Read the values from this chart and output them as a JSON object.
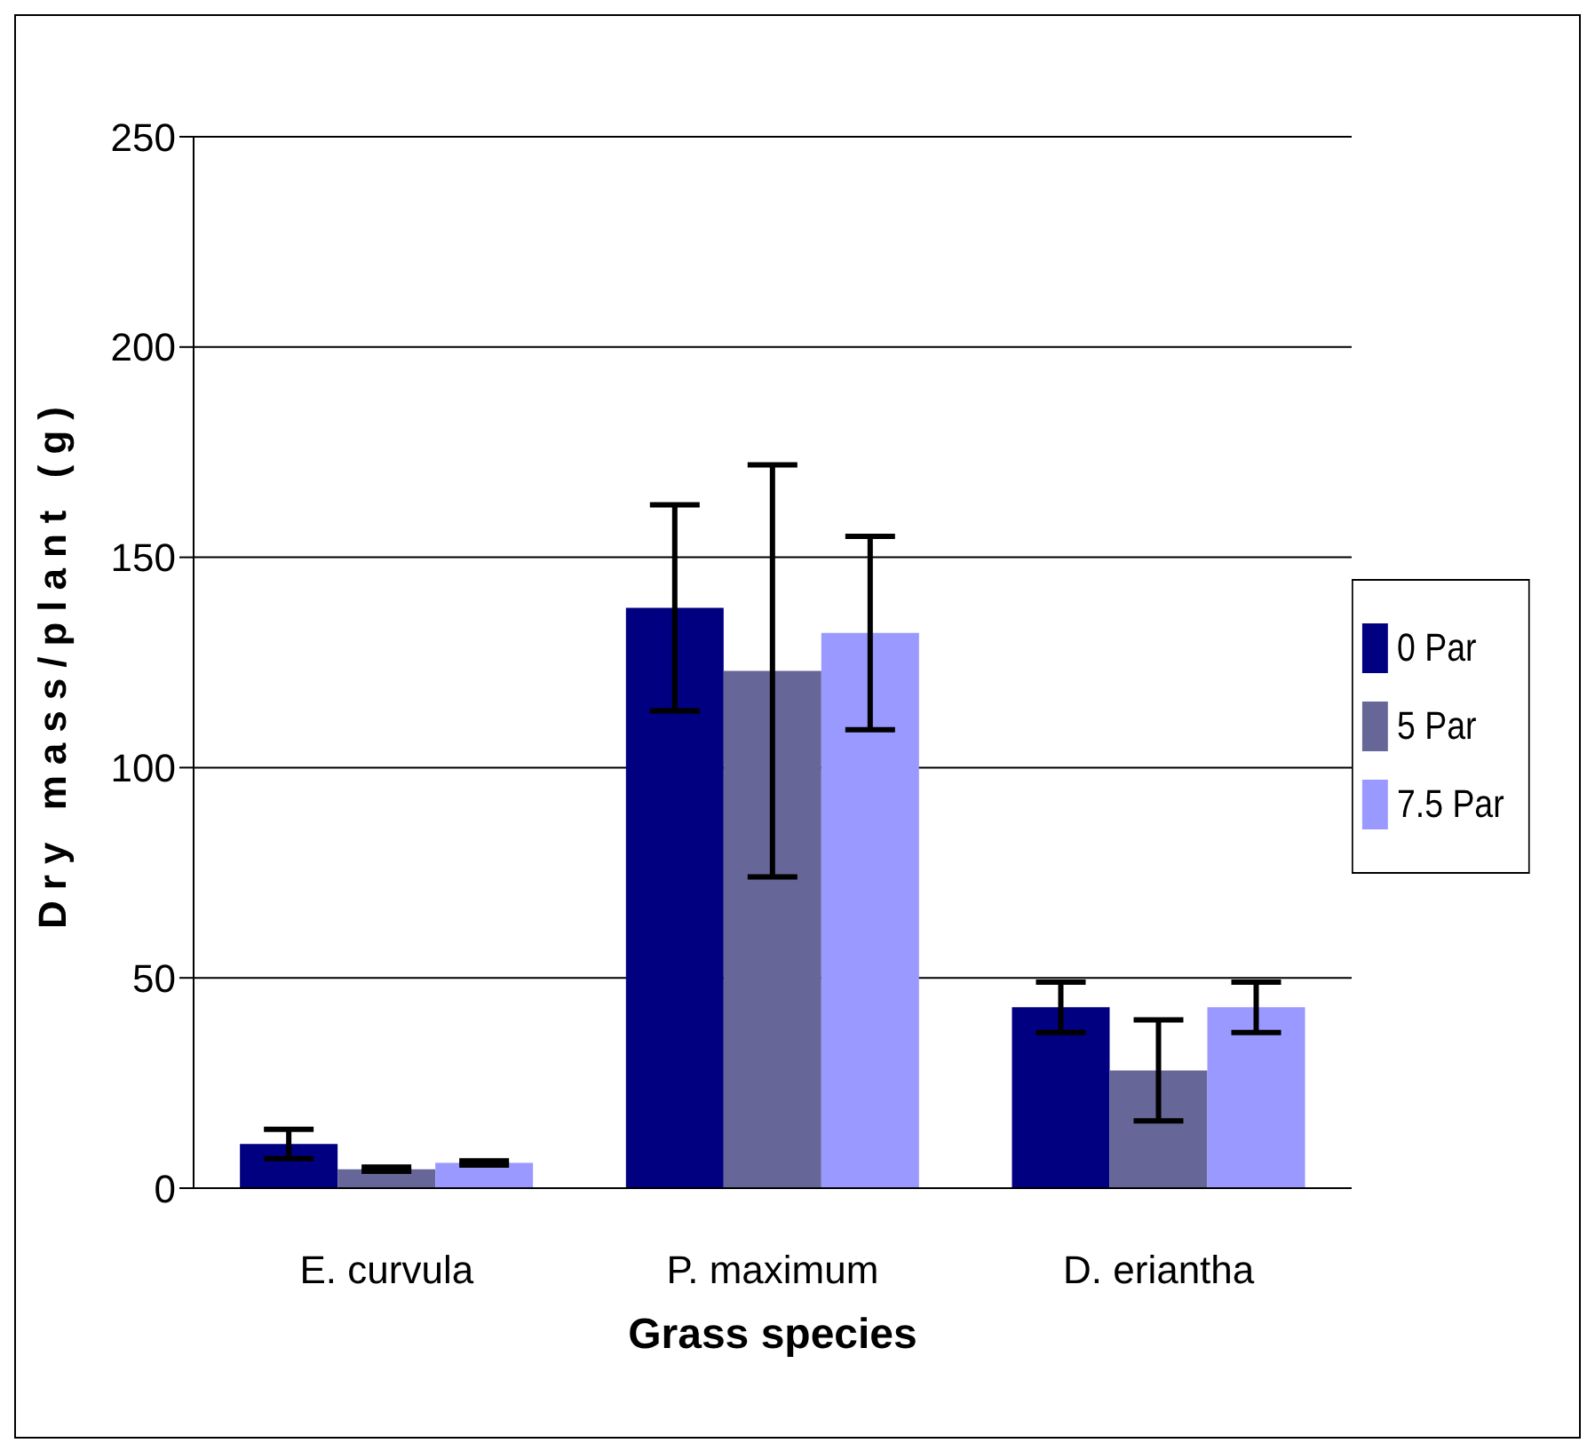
{
  "chart_data": {
    "type": "bar",
    "xlabel": "Grass species",
    "ylabel": "Dry mass/plant (g)",
    "categories": [
      "E. curvula",
      "P. maximum",
      "D. eriantha"
    ],
    "series": [
      {
        "name": "0 Par",
        "color": "#000080",
        "values": [
          10.5,
          138,
          43
        ],
        "errors": [
          3.5,
          24.5,
          6
        ]
      },
      {
        "name": "5 Par",
        "color": "#666699",
        "values": [
          4.5,
          123,
          28
        ],
        "errors": [
          0.5,
          49,
          12
        ]
      },
      {
        "name": "7.5 Par",
        "color": "#9999ff",
        "values": [
          6,
          132,
          43
        ],
        "errors": [
          0.5,
          23,
          6
        ]
      }
    ],
    "ylim": [
      0,
      250
    ],
    "yticks": [
      0,
      50,
      100,
      150,
      200,
      250
    ],
    "grid": "y",
    "legend": "right"
  }
}
